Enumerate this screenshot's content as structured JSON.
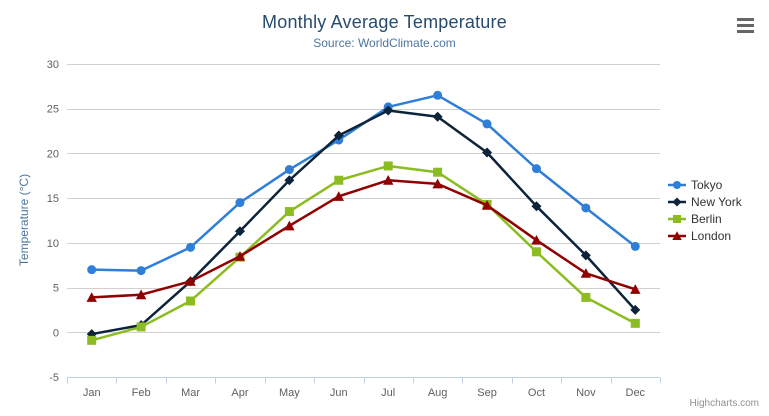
{
  "chart": {
    "context_menu_tooltip": "Chart context menu"
  },
  "credits": {
    "label": "Highcharts.com"
  },
  "chart_data": {
    "type": "line",
    "title": "Monthly Average Temperature",
    "subtitle": "Source: WorldClimate.com",
    "xlabel": "",
    "ylabel": "Temperature (°C)",
    "ylim": [
      -5,
      30
    ],
    "y_ticks": [
      30,
      25,
      20,
      15,
      10,
      5,
      0,
      -5
    ],
    "categories": [
      "Jan",
      "Feb",
      "Mar",
      "Apr",
      "May",
      "Jun",
      "Jul",
      "Aug",
      "Sep",
      "Oct",
      "Nov",
      "Dec"
    ],
    "grid": true,
    "legend_position": "right",
    "colors": {
      "grid_line": "#d0d0d0",
      "axis_line": "#c0d0e0",
      "tick_label": "#606060",
      "title": "#274b6d",
      "subtitle": "#4d759e",
      "legend_text": "#333333",
      "credits_text": "#909090"
    },
    "series": [
      {
        "name": "Tokyo",
        "color": "#2f7ed8",
        "marker": "circle",
        "values": [
          7.0,
          6.9,
          9.5,
          14.5,
          18.2,
          21.5,
          25.2,
          26.5,
          23.3,
          18.3,
          13.9,
          9.6
        ]
      },
      {
        "name": "New York",
        "color": "#0d233a",
        "marker": "diamond",
        "values": [
          -0.2,
          0.8,
          5.7,
          11.3,
          17.0,
          22.0,
          24.8,
          24.1,
          20.1,
          14.1,
          8.6,
          2.5
        ]
      },
      {
        "name": "Berlin",
        "color": "#8bbc21",
        "marker": "square",
        "values": [
          -0.9,
          0.6,
          3.5,
          8.4,
          13.5,
          17.0,
          18.6,
          17.9,
          14.3,
          9.0,
          3.9,
          1.0
        ]
      },
      {
        "name": "London",
        "color": "#910000",
        "marker": "triangle",
        "values": [
          3.9,
          4.2,
          5.7,
          8.5,
          11.9,
          15.2,
          17.0,
          16.6,
          14.2,
          10.3,
          6.6,
          4.8
        ]
      }
    ]
  }
}
